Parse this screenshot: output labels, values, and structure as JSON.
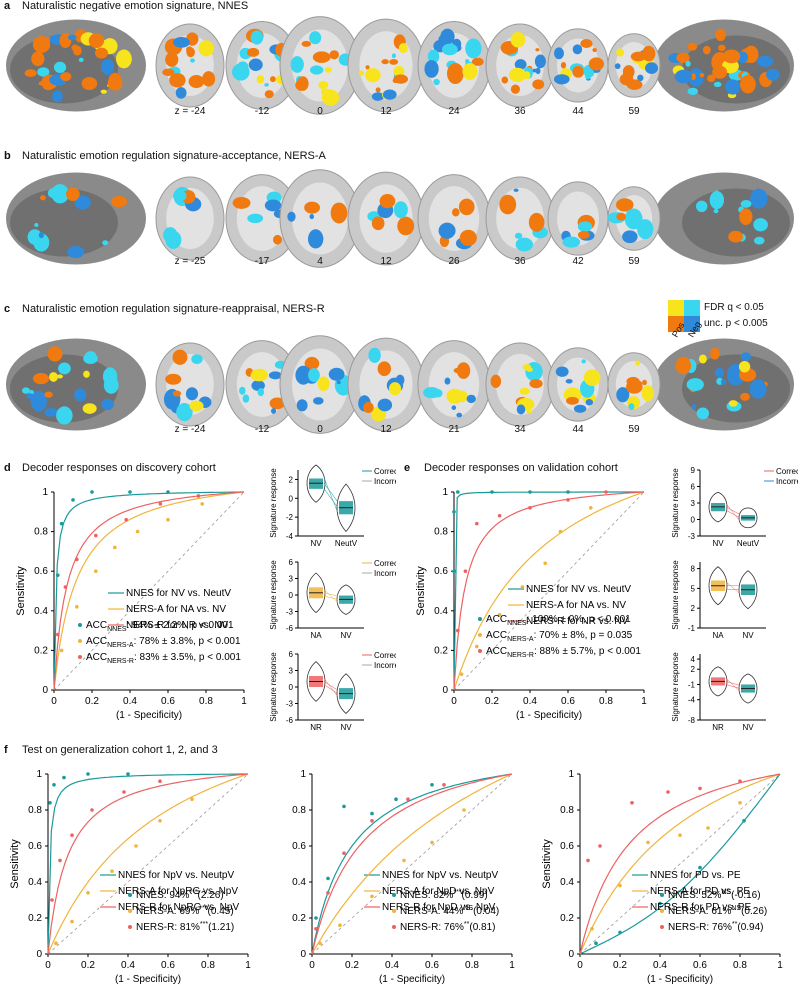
{
  "colors": {
    "teal": "#1a9a9a",
    "orange": "#f0b43c",
    "red": "#ec6262",
    "pos_fdr": "#f8e41c",
    "pos_unc": "#f07a10",
    "neg_fdr": "#3ad6f0",
    "neg_unc": "#2f8adb",
    "brain_gray": "#8a8a8a",
    "brain_dark": "#555555"
  },
  "panel_a": {
    "letter": "a",
    "title": "Naturalistic negative emotion signature, NNES",
    "z": [
      "z = -24",
      "-12",
      "0",
      "12",
      "24",
      "36",
      "44",
      "59"
    ]
  },
  "panel_b": {
    "letter": "b",
    "title": "Naturalistic emotion regulation signature-acceptance, NERS-A",
    "z": [
      "z = -25",
      "-17",
      "4",
      "12",
      "26",
      "36",
      "42",
      "59"
    ]
  },
  "panel_c": {
    "letter": "c",
    "title": "Naturalistic emotion regulation signature-reappraisal, NERS-R",
    "z": [
      "z = -24",
      "-12",
      "0",
      "12",
      "21",
      "34",
      "44",
      "59"
    ]
  },
  "colorbar_legend": {
    "fdr": "FDR q < 0.05",
    "unc": "unc. p < 0.005",
    "pos": "Pos",
    "neg": "Neg"
  },
  "panel_d": {
    "letter": "d",
    "title": "Decoder responses on discovery cohort"
  },
  "panel_e": {
    "letter": "e",
    "title": "Decoder responses on validation cohort"
  },
  "panel_f": {
    "letter": "f",
    "title": "Test on generalization cohort 1, 2, and 3"
  },
  "chart_data": [
    {
      "type": "line",
      "panel": "d",
      "xlabel": "(1 - Specificity)",
      "ylabel": "Sensitivity",
      "xlim": [
        0,
        1
      ],
      "ylim": [
        0,
        1
      ],
      "xticks": [
        "0",
        "0.2",
        "0.4",
        "0.6",
        "0.8",
        "1"
      ],
      "yticks": [
        "0",
        "0.2",
        "0.4",
        "0.6",
        "0.8",
        "1"
      ],
      "series": [
        {
          "name": "NNES for NV vs. NeutV",
          "color": "#1a9a9a",
          "k": 0.01,
          "points": [
            [
              0.02,
              0.58
            ],
            [
              0.04,
              0.84
            ],
            [
              0.1,
              0.96
            ],
            [
              0.2,
              1
            ],
            [
              0.4,
              1
            ],
            [
              0.6,
              1
            ]
          ]
        },
        {
          "name": "NERS-A for NA vs. NV",
          "color": "#f0b43c",
          "k": 0.12,
          "points": [
            [
              0.04,
              0.2
            ],
            [
              0.12,
              0.42
            ],
            [
              0.22,
              0.6
            ],
            [
              0.32,
              0.72
            ],
            [
              0.44,
              0.8
            ],
            [
              0.6,
              0.86
            ],
            [
              0.78,
              0.94
            ]
          ]
        },
        {
          "name": "NERS-R for NR vs. NV",
          "color": "#ec6262",
          "k": 0.07,
          "points": [
            [
              0.02,
              0.28
            ],
            [
              0.06,
              0.52
            ],
            [
              0.12,
              0.66
            ],
            [
              0.22,
              0.78
            ],
            [
              0.38,
              0.86
            ],
            [
              0.56,
              0.94
            ],
            [
              0.76,
              0.98
            ]
          ]
        }
      ],
      "stats": [
        {
          "pre": "ACC",
          "sub": "NNES",
          "post": ": 94% ± 2.2%, p < 0.001"
        },
        {
          "pre": "ACC",
          "sub": "NERS-A",
          "post": ": 78% ± 3.8%, p < 0.001"
        },
        {
          "pre": "ACC",
          "sub": "NERS-R",
          "post": ": 83% ± 3.5%, p < 0.001"
        }
      ]
    },
    {
      "type": "line",
      "panel": "e",
      "xlabel": "(1 - Specificity)",
      "ylabel": "Sensitivity",
      "xlim": [
        0,
        1
      ],
      "ylim": [
        0,
        1
      ],
      "xticks": [
        "0",
        "0.2",
        "0.4",
        "0.6",
        "0.8",
        "1"
      ],
      "yticks": [
        "0",
        "0.2",
        "0.4",
        "0.6",
        "0.8",
        "1"
      ],
      "series": [
        {
          "name": "NNES for NV vs. NeutV",
          "color": "#1a9a9a",
          "k": 0.0005,
          "points": [
            [
              0,
              0.6
            ],
            [
              0,
              0.9
            ],
            [
              0.02,
              1
            ],
            [
              0.2,
              1
            ],
            [
              0.4,
              1
            ],
            [
              0.6,
              1
            ]
          ]
        },
        {
          "name": "NERS-A for NA vs. NV",
          "color": "#f0b43c",
          "k": 0.5,
          "points": [
            [
              0.04,
              0.08
            ],
            [
              0.12,
              0.22
            ],
            [
              0.24,
              0.38
            ],
            [
              0.36,
              0.52
            ],
            [
              0.48,
              0.64
            ],
            [
              0.56,
              0.8
            ],
            [
              0.72,
              0.92
            ]
          ]
        },
        {
          "name": "NERS-R for NR vs. NV",
          "color": "#ec6262",
          "k": 0.06,
          "points": [
            [
              0.02,
              0.3
            ],
            [
              0.06,
              0.6
            ],
            [
              0.12,
              0.84
            ],
            [
              0.24,
              0.88
            ],
            [
              0.4,
              0.92
            ],
            [
              0.6,
              0.96
            ],
            [
              0.8,
              1
            ]
          ]
        }
      ],
      "stats": [
        {
          "pre": "ACC",
          "sub": "NNES",
          "post": ": 100% ± 0%, p < 0.001"
        },
        {
          "pre": "ACC",
          "sub": "NERS-A",
          "post": ": 70% ± 8%, p = 0.035"
        },
        {
          "pre": "ACC",
          "sub": "NERS-R",
          "post": ": 88% ± 5.7%, p < 0.001"
        }
      ]
    },
    {
      "type": "line",
      "panel": "f1",
      "xlabel": "(1 - Specificity)",
      "ylabel": "Sensitivity",
      "xlim": [
        0,
        1
      ],
      "ylim": [
        0,
        1
      ],
      "xticks": [
        "0",
        "0.2",
        "0.4",
        "0.6",
        "0.8",
        "1"
      ],
      "yticks": [
        "0",
        "0.2",
        "0.4",
        "0.6",
        "0.8",
        "1"
      ],
      "series": [
        {
          "name": "NNES for NpV vs. NeutpV",
          "color": "#1a9a9a",
          "k": 0.008,
          "points": [
            [
              0.01,
              0.84
            ],
            [
              0.03,
              0.94
            ],
            [
              0.08,
              0.98
            ],
            [
              0.2,
              1
            ],
            [
              0.4,
              1
            ]
          ]
        },
        {
          "name": "NERS-A for NpRG vs. NpV",
          "color": "#f0b43c",
          "k": 0.6,
          "points": [
            [
              0.04,
              0.06
            ],
            [
              0.12,
              0.18
            ],
            [
              0.2,
              0.34
            ],
            [
              0.32,
              0.46
            ],
            [
              0.44,
              0.6
            ],
            [
              0.56,
              0.74
            ],
            [
              0.72,
              0.86
            ]
          ]
        },
        {
          "name": "NERS-R for NpRG vs. NpV",
          "color": "#ec6262",
          "k": 0.1,
          "points": [
            [
              0.02,
              0.3
            ],
            [
              0.06,
              0.52
            ],
            [
              0.12,
              0.66
            ],
            [
              0.22,
              0.8
            ],
            [
              0.38,
              0.9
            ],
            [
              0.56,
              0.96
            ]
          ]
        }
      ],
      "stats": [
        {
          "pre": "NNES: 94%",
          "sup": "***",
          "post": "(2.26)"
        },
        {
          "pre": "NERS-A: 69%",
          "sup": "***",
          "post": "(0.45)"
        },
        {
          "pre": "NERS-R: 81%",
          "sup": "***",
          "post": "(1.21)"
        }
      ]
    },
    {
      "type": "line",
      "panel": "f2",
      "xlabel": "(1 - Specificity)",
      "ylabel": "",
      "xlim": [
        0,
        1
      ],
      "ylim": [
        0,
        1
      ],
      "xticks": [
        "0",
        "0.2",
        "0.4",
        "0.6",
        "0.8",
        "1"
      ],
      "yticks": [
        "0",
        "0.2",
        "0.4",
        "0.6",
        "0.8",
        "1"
      ],
      "series": [
        {
          "name": "NNES for NpV vs. NeutpV",
          "color": "#1a9a9a",
          "k": 0.2,
          "points": [
            [
              0.02,
              0.2
            ],
            [
              0.08,
              0.42
            ],
            [
              0.16,
              0.82
            ],
            [
              0.3,
              0.78
            ],
            [
              0.42,
              0.86
            ],
            [
              0.6,
              0.94
            ]
          ]
        },
        {
          "name": "NERS-A for NpD vs. NpV",
          "color": "#f0b43c",
          "k": 1.0,
          "points": [
            [
              0.04,
              0.06
            ],
            [
              0.14,
              0.16
            ],
            [
              0.3,
              0.32
            ],
            [
              0.46,
              0.52
            ],
            [
              0.6,
              0.62
            ],
            [
              0.76,
              0.8
            ]
          ]
        },
        {
          "name": "NERS-R for NpD vs. NpV",
          "color": "#ec6262",
          "k": 0.26,
          "points": [
            [
              0.02,
              0.14
            ],
            [
              0.08,
              0.34
            ],
            [
              0.16,
              0.56
            ],
            [
              0.3,
              0.74
            ],
            [
              0.48,
              0.86
            ],
            [
              0.66,
              0.94
            ]
          ]
        }
      ],
      "stats": [
        {
          "pre": "NNES: 82%",
          "sup": "***",
          "post": "(0.99)"
        },
        {
          "pre": "NERS-A: 44%",
          "sup": "NS",
          "post": "(0.04)"
        },
        {
          "pre": "NERS-R: 76%",
          "sup": "**",
          "post": "(0.81)"
        }
      ]
    },
    {
      "type": "line",
      "panel": "f3",
      "xlabel": "(1 - Specificity)",
      "ylabel": "Sensitivity",
      "xlim": [
        0,
        1
      ],
      "ylim": [
        0,
        1
      ],
      "xticks": [
        "0",
        "0.2",
        "0.4",
        "0.6",
        "0.8",
        "1"
      ],
      "yticks": [
        "0",
        "0.2",
        "0.4",
        "0.6",
        "0.8",
        "1"
      ],
      "series": [
        {
          "name": "NNES for PD vs. PE",
          "color": "#1a9a9a",
          "k": -0.6,
          "points": [
            [
              0.08,
              0.06
            ],
            [
              0.2,
              0.12
            ],
            [
              0.4,
              0.28
            ],
            [
              0.6,
              0.48
            ],
            [
              0.82,
              0.74
            ]
          ]
        },
        {
          "name": "NERS-A for PD vs. PE",
          "color": "#f0b43c",
          "k": 0.6,
          "points": [
            [
              0.06,
              0.14
            ],
            [
              0.2,
              0.38
            ],
            [
              0.34,
              0.62
            ],
            [
              0.5,
              0.66
            ],
            [
              0.64,
              0.7
            ],
            [
              0.8,
              0.84
            ]
          ]
        },
        {
          "name": "NERS-R for PD vs. PE",
          "color": "#ec6262",
          "k": 0.26,
          "points": [
            [
              0.04,
              0.52
            ],
            [
              0.1,
              0.6
            ],
            [
              0.26,
              0.84
            ],
            [
              0.44,
              0.9
            ],
            [
              0.6,
              0.92
            ],
            [
              0.8,
              0.96
            ]
          ]
        }
      ],
      "stats": [
        {
          "pre": "NNES: 52%",
          "sup": "NS",
          "post": "(-0.16)"
        },
        {
          "pre": "NERS-A: 61%",
          "sup": "NS",
          "post": "(0.26)"
        },
        {
          "pre": "NERS-R: 76%",
          "sup": "**",
          "post": "(0.94)"
        }
      ]
    }
  ],
  "violins": [
    {
      "panel": "d",
      "ylabel": "Signature response",
      "yticks": [
        "-4",
        "-2",
        "0",
        "2"
      ],
      "ylim": [
        -4,
        3
      ],
      "cats": [
        "NV",
        "NeutV"
      ],
      "colors": [
        "#1a9a9a",
        "#1a9a9a"
      ],
      "box": [
        [
          1.6,
          1.0,
          2.1
        ],
        [
          -1.0,
          -1.7,
          -0.3
        ]
      ],
      "legend": [
        "Correct",
        "Incorrect"
      ],
      "legend_colors": [
        "#1a9a9a",
        "#aaaaaa"
      ]
    },
    {
      "panel": "d",
      "ylabel": "Signature response",
      "yticks": [
        "-6",
        "-3",
        "0",
        "3",
        "6"
      ],
      "ylim": [
        -6,
        6
      ],
      "cats": [
        "NA",
        "NV"
      ],
      "colors": [
        "#f0b43c",
        "#1a9a9a"
      ],
      "box": [
        [
          0.4,
          -0.6,
          1.4
        ],
        [
          -0.8,
          -1.6,
          -0.1
        ]
      ],
      "legend": [
        "Correct",
        "Incorrect"
      ],
      "legend_colors": [
        "#f0b43c",
        "#aaaaaa"
      ]
    },
    {
      "panel": "d",
      "ylabel": "Signature response",
      "yticks": [
        "-6",
        "-3",
        "0",
        "3",
        "6"
      ],
      "ylim": [
        -6,
        6
      ],
      "cats": [
        "NR",
        "NV"
      ],
      "colors": [
        "#ec6262",
        "#1a9a9a"
      ],
      "box": [
        [
          1.0,
          0,
          2.0
        ],
        [
          -1.2,
          -2.2,
          -0.2
        ]
      ],
      "legend": [
        "Correct",
        "Incorrect"
      ],
      "legend_colors": [
        "#ec6262",
        "#aaaaaa"
      ]
    },
    {
      "panel": "e",
      "ylabel": "Signature response",
      "yticks": [
        "-3",
        "0",
        "3",
        "6",
        "9"
      ],
      "ylim": [
        -3,
        9
      ],
      "cats": [
        "NV",
        "NeutV"
      ],
      "colors": [
        "#1a9a9a",
        "#1a9a9a"
      ],
      "box": [
        [
          2.3,
          1.5,
          3.0
        ],
        [
          0.3,
          -0.2,
          0.8
        ]
      ],
      "legend": [
        "Correct",
        "Incorrect"
      ],
      "legend_colors": [
        "#ec6262",
        "#2f8adb"
      ]
    },
    {
      "panel": "e",
      "ylabel": "Signature response",
      "yticks": [
        "-1",
        "2",
        "5",
        "8"
      ],
      "ylim": [
        -1,
        9
      ],
      "cats": [
        "NA",
        "NV"
      ],
      "colors": [
        "#f0b43c",
        "#1a9a9a"
      ],
      "box": [
        [
          5.4,
          4.6,
          6.2
        ],
        [
          4.8,
          4.0,
          5.6
        ]
      ],
      "legend": [],
      "legend_colors": []
    },
    {
      "panel": "e",
      "ylabel": "Signature response",
      "yticks": [
        "-8",
        "-4",
        "-1",
        "2",
        "4"
      ],
      "ylim": [
        -8,
        5
      ],
      "cats": [
        "NR",
        "NV"
      ],
      "colors": [
        "#ec6262",
        "#1a9a9a"
      ],
      "box": [
        [
          -0.4,
          -1.2,
          0.4
        ],
        [
          -1.8,
          -2.6,
          -1.0
        ]
      ],
      "legend": [],
      "legend_colors": []
    }
  ]
}
